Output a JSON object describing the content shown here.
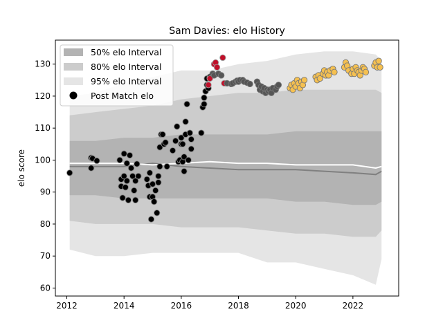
{
  "chart_data": {
    "type": "scatter",
    "title": "Sam Davies: elo History",
    "xlabel": "",
    "ylabel": "elo score",
    "xlim": [
      2011.6,
      2023.6
    ],
    "ylim": [
      57.5,
      137.5
    ],
    "x_ticks": [
      2012,
      2014,
      2016,
      2018,
      2020,
      2022
    ],
    "y_ticks": [
      60,
      70,
      80,
      90,
      100,
      110,
      120,
      130
    ],
    "legend_position": "top-left",
    "legend": {
      "band50": "50% elo Interval",
      "band80": "80% elo Interval",
      "band95": "95% elo Interval",
      "points": "Post Match elo"
    },
    "colors": {
      "band50": "#b3b3b3",
      "band80": "#cccccc",
      "band95": "#e5e5e5",
      "mean_line": "#ffffff",
      "median_line": "#808080",
      "point_black": "#000000",
      "point_gray": "#555555",
      "point_red": "#c0102a",
      "point_orange": "#f5c050",
      "point_outline": "#999999"
    },
    "bands": {
      "x": [
        2012.1,
        2013.0,
        2014.0,
        2015.0,
        2016.0,
        2017.0,
        2018.0,
        2019.0,
        2020.0,
        2021.0,
        2022.0,
        2022.8,
        2023.0
      ],
      "band95_upper": [
        120,
        121,
        124,
        126,
        128,
        128,
        130,
        131,
        133,
        134,
        134,
        133,
        131
      ],
      "band95_lower": [
        72,
        70,
        70,
        71,
        71,
        71,
        71,
        68,
        68,
        66,
        64,
        61,
        69
      ],
      "band80_upper": [
        114,
        115,
        116,
        117,
        119,
        120,
        121,
        121,
        122,
        122,
        122,
        122,
        121
      ],
      "band80_lower": [
        81,
        80,
        80,
        80,
        79,
        79,
        79,
        78,
        77,
        77,
        76,
        76,
        78
      ],
      "band50_upper": [
        106,
        106,
        107,
        107,
        108,
        108,
        108,
        108,
        109,
        109,
        109,
        109,
        109
      ],
      "band50_lower": [
        89,
        89,
        88,
        88,
        88,
        88,
        88,
        88,
        87,
        87,
        86,
        86,
        87
      ],
      "mean_line": [
        99,
        99,
        99,
        98.5,
        99,
        99.5,
        99,
        99,
        98.5,
        98.5,
        98.5,
        97.5,
        98
      ],
      "median_line": [
        98,
        98,
        98,
        99,
        98,
        97.5,
        97,
        97,
        97,
        96.5,
        96,
        95.5,
        96.5
      ]
    },
    "series": [
      {
        "color": "point_black",
        "points": [
          [
            2012.1,
            96
          ],
          [
            2012.85,
            100.7
          ],
          [
            2012.9,
            100.5
          ],
          [
            2012.85,
            97.5
          ],
          [
            2013.05,
            99.8
          ],
          [
            2013.85,
            100
          ],
          [
            2013.9,
            94
          ],
          [
            2013.9,
            91.8
          ],
          [
            2013.95,
            88.2
          ],
          [
            2014.0,
            102
          ],
          [
            2014.0,
            95
          ],
          [
            2014.05,
            91.5
          ],
          [
            2014.1,
            99
          ],
          [
            2014.1,
            93.5
          ],
          [
            2014.15,
            87.5
          ],
          [
            2014.2,
            101.5
          ],
          [
            2014.25,
            97.5
          ],
          [
            2014.3,
            95
          ],
          [
            2014.35,
            90.5
          ],
          [
            2014.4,
            93.5
          ],
          [
            2014.4,
            87.5
          ],
          [
            2014.45,
            98.8
          ],
          [
            2014.5,
            95
          ],
          [
            2014.8,
            94
          ],
          [
            2014.85,
            92
          ],
          [
            2014.9,
            96
          ],
          [
            2014.9,
            88.5
          ],
          [
            2014.95,
            81.5
          ],
          [
            2015.0,
            92.5
          ],
          [
            2015.0,
            88.5
          ],
          [
            2015.05,
            87
          ],
          [
            2015.1,
            90.5
          ],
          [
            2015.15,
            83.5
          ],
          [
            2015.2,
            95
          ],
          [
            2015.2,
            93
          ],
          [
            2015.25,
            98
          ],
          [
            2015.25,
            104
          ],
          [
            2015.3,
            108
          ],
          [
            2015.35,
            108
          ],
          [
            2015.4,
            105
          ],
          [
            2015.45,
            105.5
          ],
          [
            2015.5,
            98
          ],
          [
            2015.7,
            103
          ],
          [
            2015.8,
            106
          ],
          [
            2015.85,
            110.5
          ],
          [
            2015.9,
            99.5
          ],
          [
            2015.95,
            100
          ],
          [
            2016.0,
            105
          ],
          [
            2016.0,
            107
          ],
          [
            2016.05,
            105
          ],
          [
            2016.05,
            99.5
          ],
          [
            2016.1,
            101
          ],
          [
            2016.1,
            96.5
          ],
          [
            2016.15,
            108
          ],
          [
            2016.15,
            112
          ],
          [
            2016.2,
            117.5
          ],
          [
            2016.25,
            100
          ],
          [
            2016.3,
            108.5
          ],
          [
            2016.35,
            103.5
          ],
          [
            2016.35,
            106.5
          ],
          [
            2016.7,
            108.5
          ],
          [
            2016.75,
            116.5
          ],
          [
            2016.8,
            117.5
          ],
          [
            2016.8,
            119.5
          ],
          [
            2016.85,
            121.5
          ],
          [
            2016.9,
            123.5
          ],
          [
            2016.9,
            125.5
          ],
          [
            2016.95,
            122.5
          ],
          [
            2017.0,
            126
          ]
        ]
      },
      {
        "color": "point_red",
        "points": [
          [
            2016.95,
            123.5
          ],
          [
            2017.0,
            125.5
          ],
          [
            2017.15,
            130
          ],
          [
            2017.2,
            130.5
          ],
          [
            2017.25,
            129
          ],
          [
            2017.45,
            132
          ],
          [
            2017.5,
            124
          ]
        ]
      },
      {
        "color": "point_gray",
        "points": [
          [
            2017.1,
            127
          ],
          [
            2017.15,
            126.5
          ],
          [
            2017.3,
            127
          ],
          [
            2017.4,
            126.5
          ],
          [
            2017.6,
            124
          ],
          [
            2017.75,
            123.8
          ],
          [
            2017.8,
            124
          ],
          [
            2017.9,
            124.5
          ],
          [
            2017.95,
            124.8
          ],
          [
            2018.0,
            124.5
          ],
          [
            2018.05,
            125
          ],
          [
            2018.15,
            125
          ],
          [
            2018.2,
            124.5
          ],
          [
            2018.3,
            124.2
          ],
          [
            2018.4,
            123.8
          ],
          [
            2018.65,
            124.5
          ],
          [
            2018.7,
            123.5
          ],
          [
            2018.75,
            122
          ],
          [
            2018.8,
            123
          ],
          [
            2018.85,
            121.5
          ],
          [
            2018.9,
            122.5
          ],
          [
            2018.95,
            121
          ],
          [
            2019.0,
            122
          ],
          [
            2019.05,
            121.5
          ],
          [
            2019.1,
            122
          ],
          [
            2019.15,
            121
          ],
          [
            2019.2,
            122.5
          ],
          [
            2019.3,
            122
          ],
          [
            2019.35,
            123
          ],
          [
            2019.4,
            123.5
          ]
        ]
      },
      {
        "color": "point_orange",
        "points": [
          [
            2019.8,
            122.5
          ],
          [
            2019.85,
            123.5
          ],
          [
            2019.9,
            122
          ],
          [
            2019.95,
            124
          ],
          [
            2020.0,
            123
          ],
          [
            2020.05,
            125
          ],
          [
            2020.1,
            124
          ],
          [
            2020.15,
            122.5
          ],
          [
            2020.2,
            124.5
          ],
          [
            2020.25,
            123.5
          ],
          [
            2020.3,
            125
          ],
          [
            2020.7,
            126
          ],
          [
            2020.75,
            125
          ],
          [
            2020.8,
            126.5
          ],
          [
            2020.85,
            125.5
          ],
          [
            2020.95,
            127
          ],
          [
            2021.0,
            128
          ],
          [
            2021.05,
            126.5
          ],
          [
            2021.1,
            127.5
          ],
          [
            2021.15,
            126.5
          ],
          [
            2021.2,
            128
          ],
          [
            2021.3,
            128.5
          ],
          [
            2021.35,
            127.5
          ],
          [
            2021.7,
            129
          ],
          [
            2021.75,
            130.5
          ],
          [
            2021.8,
            129.5
          ],
          [
            2021.85,
            128
          ],
          [
            2021.95,
            127
          ],
          [
            2022.0,
            128.5
          ],
          [
            2022.05,
            127
          ],
          [
            2022.1,
            129
          ],
          [
            2022.15,
            128
          ],
          [
            2022.2,
            127.5
          ],
          [
            2022.25,
            126.5
          ],
          [
            2022.3,
            128
          ],
          [
            2022.35,
            129
          ],
          [
            2022.4,
            128.5
          ],
          [
            2022.45,
            127.5
          ],
          [
            2022.75,
            129.5
          ],
          [
            2022.8,
            130.5
          ],
          [
            2022.85,
            129
          ],
          [
            2022.9,
            131
          ],
          [
            2022.95,
            129
          ]
        ]
      }
    ]
  }
}
